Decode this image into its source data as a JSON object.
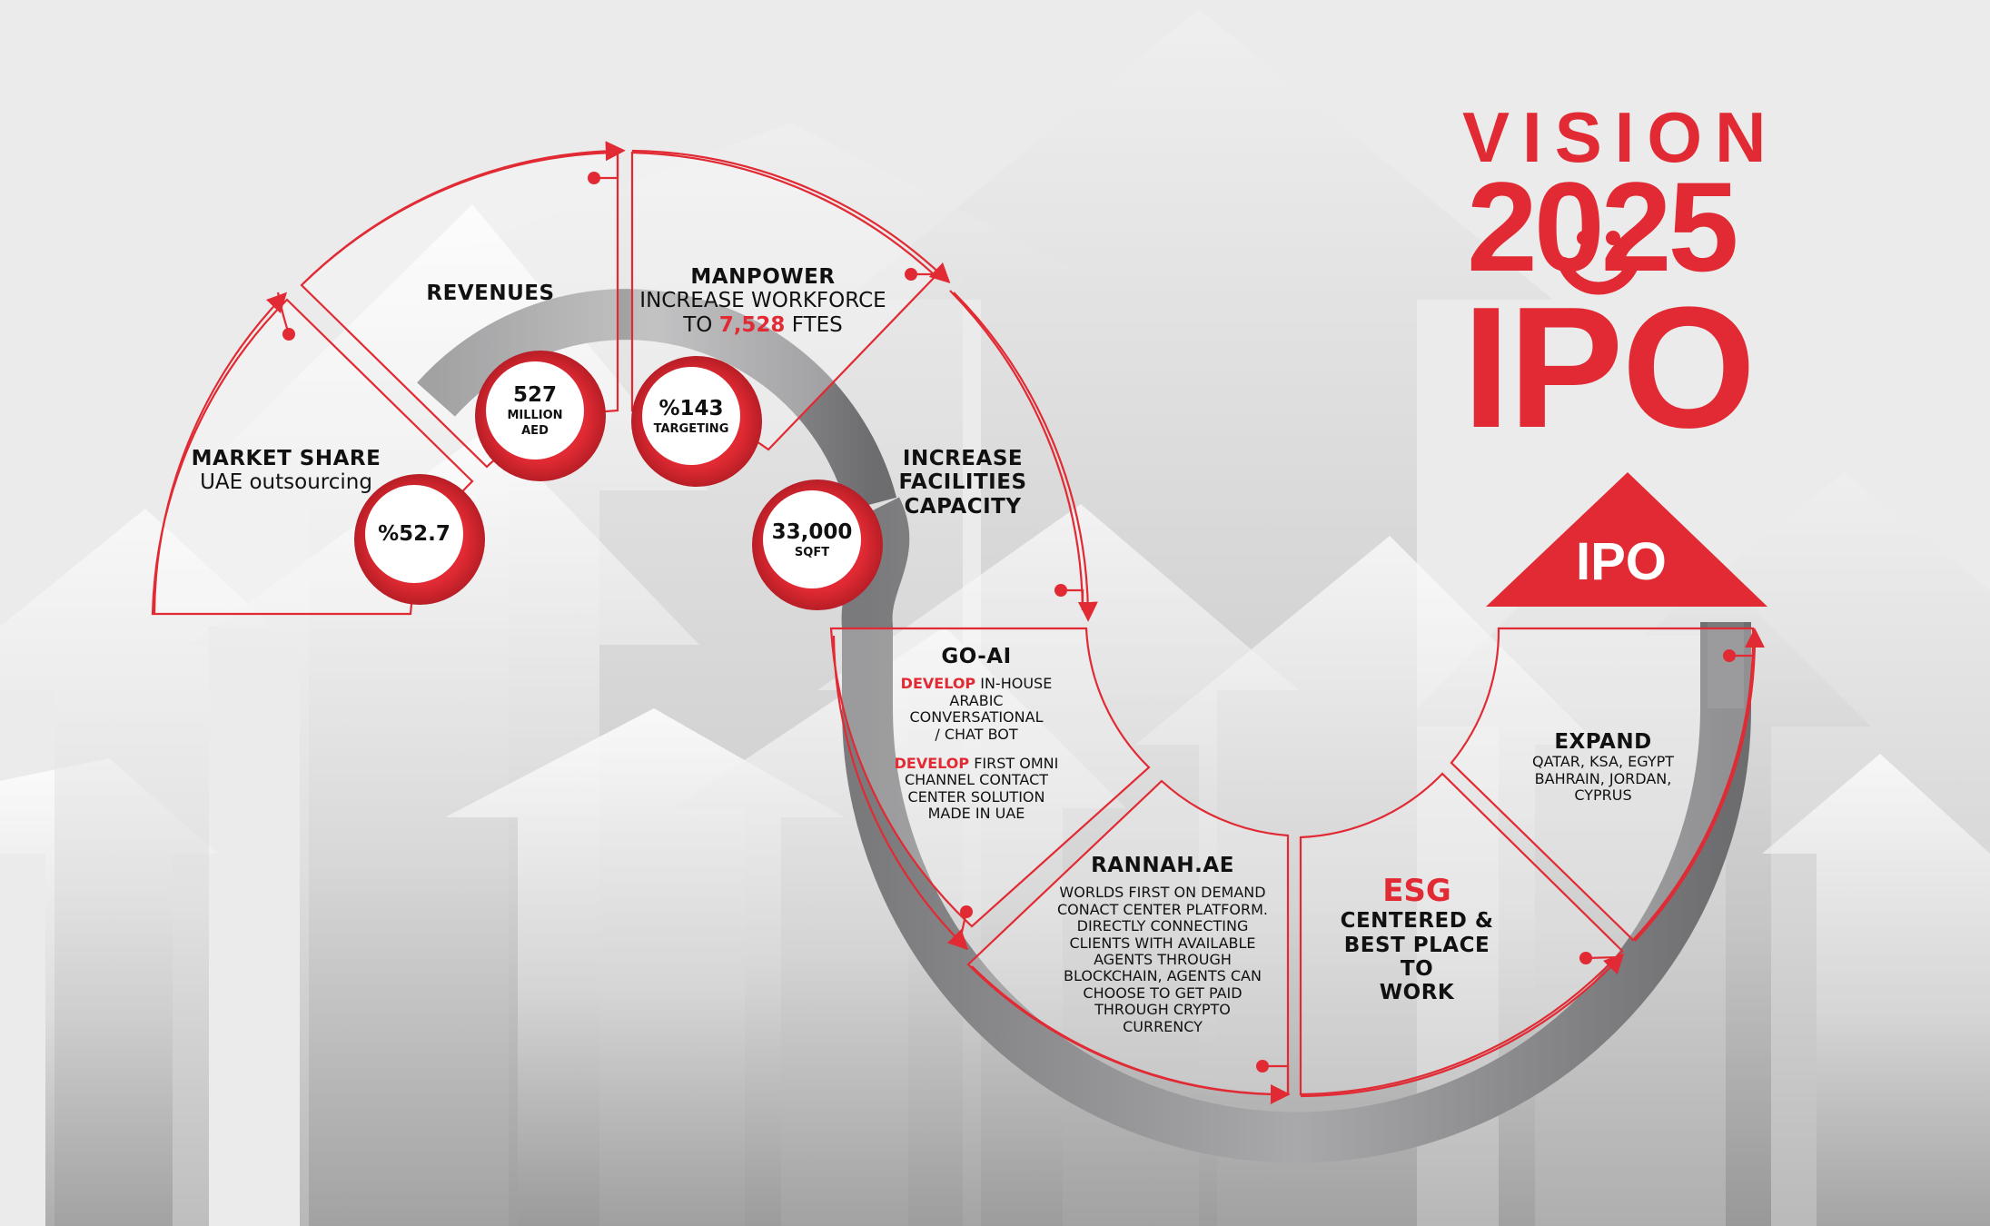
{
  "brand": {
    "vision": "VISION",
    "year": "2025",
    "ipo": "IPO",
    "ipo_triangle": "IPO",
    "accent_color": "#e12a33"
  },
  "segments": {
    "market_share": {
      "title": "MARKET SHARE",
      "subtitle": "UAE outsourcing",
      "badge": "%52.7"
    },
    "revenues": {
      "title": "REVENUES",
      "badge_value": "527",
      "badge_line1": "MILLION",
      "badge_line2": "AED"
    },
    "manpower": {
      "title": "MANPOWER",
      "line1": "INCREASE WORKFORCE",
      "line2_prefix": "TO ",
      "line2_highlight": "7,528",
      "line2_suffix": " FTES",
      "badge_value": "%143",
      "badge_label": "TARGETING"
    },
    "facilities": {
      "line1": "INCREASE",
      "line2": "FACILITIES",
      "line3": "CAPACITY",
      "badge_value": "33,000",
      "badge_label": "SQFT"
    },
    "go_ai": {
      "title": "GO-AI",
      "p1_highlight": "DEVELOP",
      "p1_rest": " IN-HOUSE",
      "p1_line2": "ARABIC",
      "p1_line3": "CONVERSATIONAL",
      "p1_line4": "/ CHAT BOT",
      "p2_highlight": "DEVELOP",
      "p2_rest": " FIRST OMNI",
      "p2_line2": "CHANNEL CONTACT",
      "p2_line3": "CENTER SOLUTION",
      "p2_line4": "MADE IN UAE"
    },
    "rannah": {
      "title": "RANNAH.AE",
      "lines": [
        "WORLDS FIRST ON DEMAND",
        "CONACT CENTER PLATFORM.",
        "DIRECTLY CONNECTING",
        "CLIENTS WITH AVAILABLE",
        "AGENTS THROUGH",
        "BLOCKCHAIN, AGENTS CAN",
        "CHOOSE TO GET PAID",
        "THROUGH CRYPTO",
        "CURRENCY"
      ]
    },
    "esg": {
      "title": "ESG",
      "line1": "CENTERED &",
      "line2": "BEST PLACE TO",
      "line3": "WORK"
    },
    "expand": {
      "title": "EXPAND",
      "line1": "QATAR, KSA, EGYPT",
      "line2": "BAHRAIN, JORDAN,",
      "line3": "CYPRUS"
    }
  }
}
